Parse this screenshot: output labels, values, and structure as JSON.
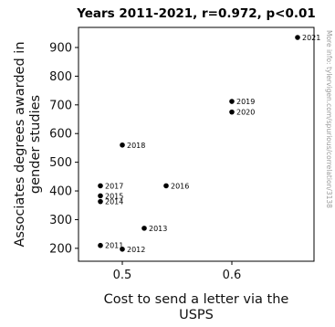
{
  "chart_data": {
    "type": "scatter",
    "title": "Years 2011-2021, r=0.972, p<0.01",
    "xlabel": "Cost to send a letter via the USPS",
    "ylabel": "Associates degrees awarded in gender studies",
    "watermark": "More info: tylervigen.com/spurious/correlation/3138",
    "xlim": [
      0.46,
      0.675
    ],
    "ylim": [
      155,
      970
    ],
    "xticks": [
      0.5,
      0.6
    ],
    "yticks": [
      200,
      300,
      400,
      500,
      600,
      700,
      800,
      900
    ],
    "point_color": "#000000",
    "points": [
      {
        "label": "2011",
        "x": 0.48,
        "y": 210
      },
      {
        "label": "2012",
        "x": 0.5,
        "y": 197
      },
      {
        "label": "2013",
        "x": 0.52,
        "y": 270
      },
      {
        "label": "2014",
        "x": 0.48,
        "y": 363
      },
      {
        "label": "2015",
        "x": 0.48,
        "y": 383
      },
      {
        "label": "2016",
        "x": 0.54,
        "y": 418
      },
      {
        "label": "2017",
        "x": 0.48,
        "y": 418
      },
      {
        "label": "2018",
        "x": 0.5,
        "y": 560
      },
      {
        "label": "2019",
        "x": 0.6,
        "y": 712
      },
      {
        "label": "2020",
        "x": 0.6,
        "y": 675
      },
      {
        "label": "2021",
        "x": 0.66,
        "y": 935
      }
    ]
  }
}
